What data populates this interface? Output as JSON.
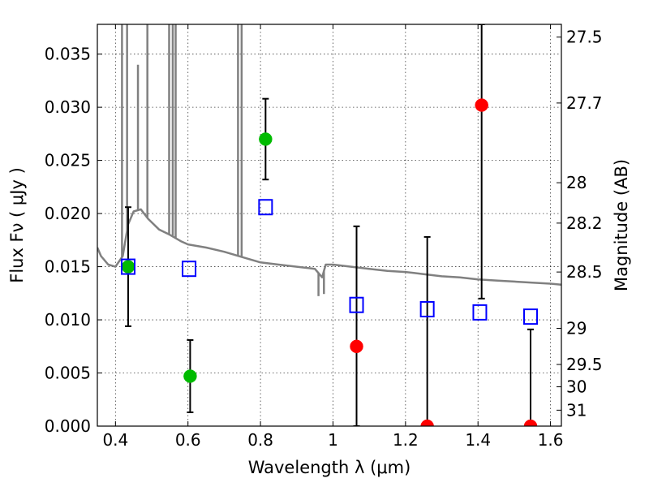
{
  "chart_data": {
    "type": "scatter",
    "xlabel": "Wavelength  λ (μm)",
    "ylabel": "Flux  Fν  ( μJy )",
    "ylabel_right": "Magnitude (AB)",
    "xlim": [
      0.35,
      1.63
    ],
    "ylim": [
      0.0,
      0.0378
    ],
    "grid": true,
    "x_ticks": [
      {
        "value": 0.4,
        "label": "0.4"
      },
      {
        "value": 0.6,
        "label": "0.6"
      },
      {
        "value": 0.8,
        "label": "0.8"
      },
      {
        "value": 1.0,
        "label": "1"
      },
      {
        "value": 1.2,
        "label": "1.2"
      },
      {
        "value": 1.4,
        "label": "1.4"
      },
      {
        "value": 1.6,
        "label": "1.6"
      }
    ],
    "y_ticks": [
      {
        "value": 0.0,
        "label": "0.000"
      },
      {
        "value": 0.005,
        "label": "0.005"
      },
      {
        "value": 0.01,
        "label": "0.010"
      },
      {
        "value": 0.015,
        "label": "0.015"
      },
      {
        "value": 0.02,
        "label": "0.020"
      },
      {
        "value": 0.025,
        "label": "0.025"
      },
      {
        "value": 0.03,
        "label": "0.030"
      },
      {
        "value": 0.035,
        "label": "0.035"
      }
    ],
    "right_ticks": [
      {
        "flux": 0.0366,
        "label": "27.5"
      },
      {
        "flux": 0.0304,
        "label": "27.7"
      },
      {
        "flux": 0.0229,
        "label": "28"
      },
      {
        "flux": 0.0191,
        "label": "28.2"
      },
      {
        "flux": 0.0145,
        "label": "28.5"
      },
      {
        "flux": 0.0092,
        "label": "29"
      },
      {
        "flux": 0.0058,
        "label": "29.5"
      },
      {
        "flux": 0.0037,
        "label": "30"
      },
      {
        "flux": 0.0015,
        "label": "31"
      }
    ],
    "colors": {
      "green": "#00bb00",
      "red": "#ff0000",
      "blue": "#0000ff",
      "sed": "#808080",
      "errorbar": "#000000"
    },
    "series": [
      {
        "marker": "circle-green",
        "points": [
          {
            "x": 0.435,
            "y": 0.015,
            "ylo": 0.0094,
            "yhi": 0.0206
          },
          {
            "x": 0.606,
            "y": 0.0047,
            "ylo": 0.0013,
            "yhi": 0.0081
          },
          {
            "x": 0.814,
            "y": 0.027,
            "ylo": 0.0232,
            "yhi": 0.0308
          }
        ]
      },
      {
        "marker": "circle-red",
        "points": [
          {
            "x": 1.065,
            "y": 0.0075,
            "ylo": 0.0,
            "yhi": 0.0188
          },
          {
            "x": 1.26,
            "y": 0.0,
            "ylo": 0.0,
            "yhi": 0.0178
          },
          {
            "x": 1.41,
            "y": 0.0302,
            "ylo": 0.012,
            "yhi": 0.0378
          },
          {
            "x": 1.545,
            "y": 0.0,
            "ylo": 0.0,
            "yhi": 0.0091
          }
        ]
      },
      {
        "marker": "square-blue",
        "points": [
          {
            "x": 0.435,
            "y": 0.015
          },
          {
            "x": 0.603,
            "y": 0.0148
          },
          {
            "x": 0.814,
            "y": 0.0206
          },
          {
            "x": 1.065,
            "y": 0.0114
          },
          {
            "x": 1.26,
            "y": 0.011
          },
          {
            "x": 1.405,
            "y": 0.0107
          },
          {
            "x": 1.545,
            "y": 0.0103
          }
        ]
      },
      {
        "marker": "line-gray",
        "continuum": [
          [
            0.35,
            0.0168
          ],
          [
            0.36,
            0.016
          ],
          [
            0.38,
            0.0152
          ],
          [
            0.4,
            0.015
          ],
          [
            0.42,
            0.016
          ],
          [
            0.435,
            0.019
          ],
          [
            0.45,
            0.0202
          ],
          [
            0.47,
            0.0204
          ],
          [
            0.49,
            0.0195
          ],
          [
            0.52,
            0.0185
          ],
          [
            0.55,
            0.018
          ],
          [
            0.58,
            0.0174
          ],
          [
            0.6,
            0.0171
          ],
          [
            0.65,
            0.0168
          ],
          [
            0.7,
            0.0164
          ],
          [
            0.75,
            0.0159
          ],
          [
            0.8,
            0.0154
          ],
          [
            0.85,
            0.0152
          ],
          [
            0.9,
            0.015
          ],
          [
            0.95,
            0.0148
          ],
          [
            0.97,
            0.014
          ],
          [
            0.98,
            0.0152
          ],
          [
            1.0,
            0.0152
          ],
          [
            1.05,
            0.015
          ],
          [
            1.1,
            0.0148
          ],
          [
            1.15,
            0.0146
          ],
          [
            1.2,
            0.0145
          ],
          [
            1.25,
            0.0143
          ],
          [
            1.3,
            0.0141
          ],
          [
            1.35,
            0.014
          ],
          [
            1.4,
            0.0138
          ],
          [
            1.45,
            0.0137
          ],
          [
            1.5,
            0.0136
          ],
          [
            1.55,
            0.0135
          ],
          [
            1.6,
            0.0134
          ],
          [
            1.63,
            0.0133
          ]
        ],
        "emission_lines": [
          {
            "x": 0.418,
            "y": 0.0378
          },
          {
            "x": 0.432,
            "y": 0.0378
          },
          {
            "x": 0.462,
            "y": 0.034
          },
          {
            "x": 0.488,
            "y": 0.0378
          },
          {
            "x": 0.548,
            "y": 0.0378
          },
          {
            "x": 0.558,
            "y": 0.0378
          },
          {
            "x": 0.566,
            "y": 0.0378
          },
          {
            "x": 0.738,
            "y": 0.0378
          },
          {
            "x": 0.748,
            "y": 0.0378
          }
        ],
        "absorption_lines": [
          {
            "x": 0.96,
            "y": 0.0133
          },
          {
            "x": 0.975,
            "y": 0.0135
          }
        ]
      }
    ]
  }
}
